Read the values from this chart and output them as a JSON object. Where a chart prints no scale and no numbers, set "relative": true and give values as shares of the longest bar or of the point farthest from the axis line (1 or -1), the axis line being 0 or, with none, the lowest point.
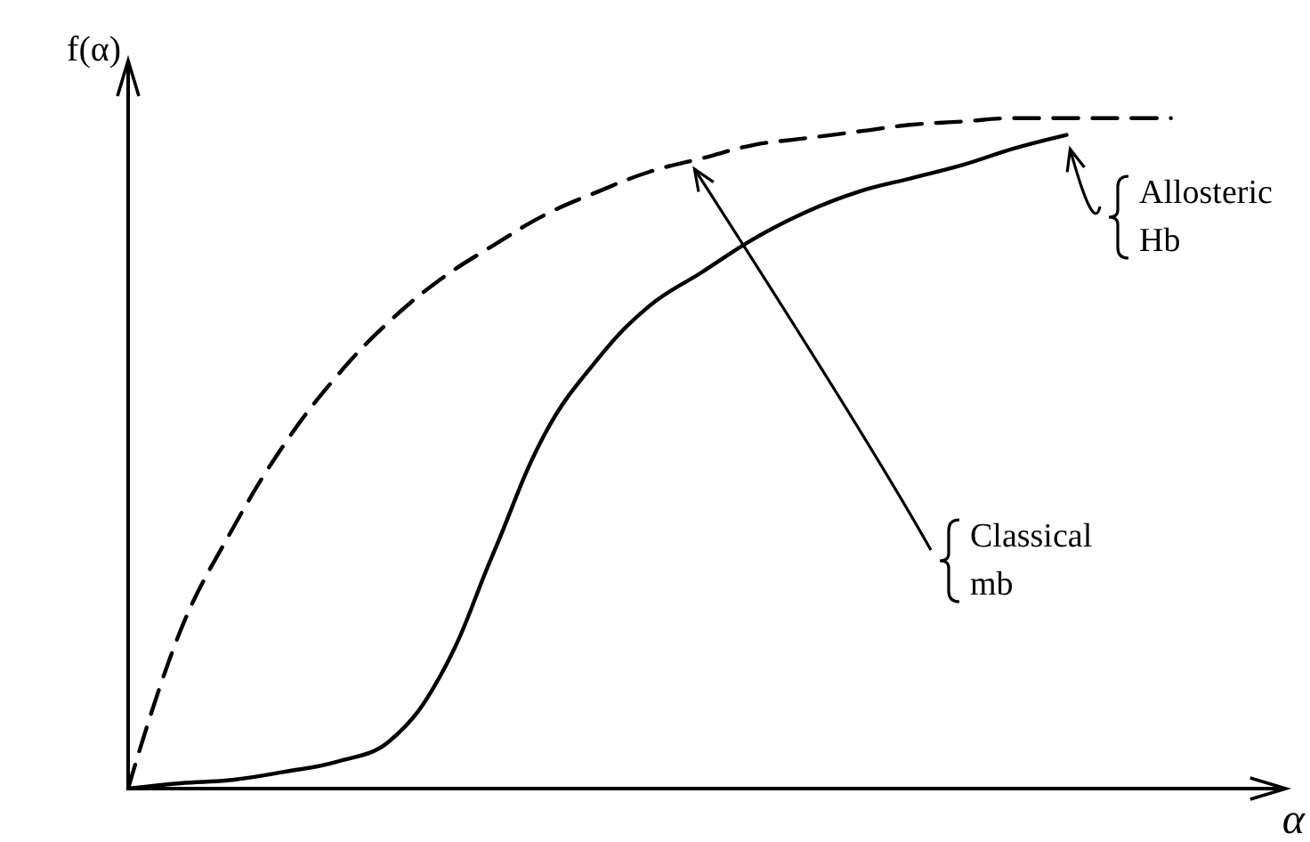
{
  "chart_data": {
    "type": "line",
    "relative": true,
    "xlabel": "α",
    "ylabel": "f(α)",
    "categories": [
      null,
      null,
      null,
      null,
      null,
      null,
      null,
      null,
      null,
      null,
      null,
      null,
      null,
      null,
      null,
      null,
      null,
      null,
      null,
      null,
      null,
      null,
      null
    ],
    "series": [
      {
        "color": "#000000",
        "line_style": "dashed",
        "values": [
          0,
          0.235,
          0.387,
          0.514,
          0.615,
          0.696,
          0.76,
          0.81,
          0.856,
          0.89,
          0.92,
          0.94,
          0.96,
          0.97,
          0.98,
          0.99,
          0.995,
          1,
          1,
          1,
          1,
          null,
          null
        ]
      },
      {
        "color": "#000000",
        "line_style": "solid",
        "values": [
          0,
          0.008,
          0.013,
          0.025,
          0.04,
          0.07,
          0.17,
          0.35,
          0.53,
          0.64,
          0.72,
          0.77,
          0.82,
          0.86,
          0.89,
          0.91,
          0.93,
          0.955,
          0.975,
          null,
          null,
          null,
          null
        ]
      }
    ],
    "annotations": [
      "Classical mb",
      "Allosteric Hb"
    ],
    "grid": false,
    "marker": "none"
  }
}
